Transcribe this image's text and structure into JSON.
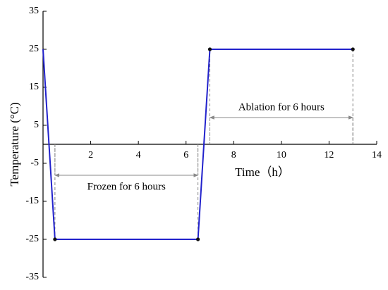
{
  "chart_data": {
    "type": "line",
    "x_label": "Time（h）",
    "y_label": "Temperature (°C)",
    "x": [
      0,
      0.5,
      6.5,
      7,
      13
    ],
    "series": [
      {
        "name": "Temperature",
        "color": "#2222cc",
        "values": [
          25,
          -25,
          -25,
          25,
          25
        ]
      }
    ],
    "xlim": [
      0,
      14
    ],
    "xticks": [
      2,
      4,
      6,
      8,
      10,
      12,
      14
    ],
    "ylim": [
      -35,
      35
    ],
    "yticks": [
      35,
      25,
      15,
      5,
      -5,
      -15,
      -25,
      -35
    ],
    "annotations": [
      "Frozen for 6 hours",
      "Ablation for 6 hours"
    ]
  }
}
